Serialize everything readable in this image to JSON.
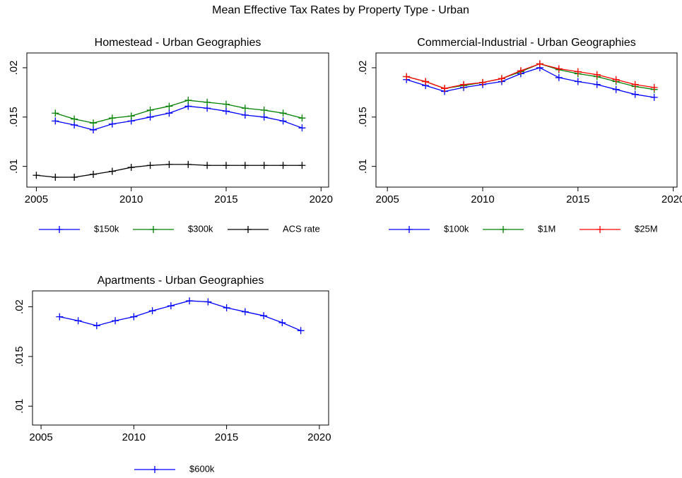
{
  "title": "Mean Effective Tax Rates by Property Type - Urban",
  "chart_data": [
    {
      "type": "line",
      "title": "Homestead - Urban Geographies",
      "xlim": [
        2004.5,
        2020.4
      ],
      "xticks": [
        2005,
        2010,
        2015,
        2020
      ],
      "ylim": [
        0.0079,
        0.0215
      ],
      "yticks": [
        {
          "value": 0.01,
          "label": ".01"
        },
        {
          "value": 0.015,
          "label": ".015"
        },
        {
          "value": 0.02,
          "label": ".02"
        }
      ],
      "series": [
        {
          "name": "$150k",
          "color": "#0000ff",
          "x": [
            2006,
            2007,
            2008,
            2009,
            2010,
            2011,
            2012,
            2013,
            2014,
            2015,
            2016,
            2017,
            2018,
            2019
          ],
          "values": [
            0.0146,
            0.0142,
            0.0137,
            0.0143,
            0.0146,
            0.015,
            0.0154,
            0.0161,
            0.0159,
            0.0156,
            0.0152,
            0.015,
            0.0146,
            0.0139
          ]
        },
        {
          "name": "$300k",
          "color": "#008000",
          "x": [
            2006,
            2007,
            2008,
            2009,
            2010,
            2011,
            2012,
            2013,
            2014,
            2015,
            2016,
            2017,
            2018,
            2019
          ],
          "values": [
            0.0154,
            0.0148,
            0.0144,
            0.0149,
            0.0151,
            0.0157,
            0.0161,
            0.0167,
            0.0165,
            0.0163,
            0.0159,
            0.0157,
            0.0154,
            0.0149
          ]
        },
        {
          "name": "ACS rate",
          "color": "#000000",
          "x": [
            2005,
            2006,
            2007,
            2008,
            2009,
            2010,
            2011,
            2012,
            2013,
            2014,
            2015,
            2016,
            2017,
            2018,
            2019
          ],
          "values": [
            0.0091,
            0.0089,
            0.0089,
            0.0092,
            0.0095,
            0.0099,
            0.0101,
            0.0102,
            0.0102,
            0.0101,
            0.0101,
            0.0101,
            0.0101,
            0.0101,
            0.0101
          ]
        }
      ]
    },
    {
      "type": "line",
      "title": "Commercial-Industrial - Urban Geographies",
      "xlim": [
        2004.4,
        2020.2
      ],
      "xticks": [
        2005,
        2010,
        2015,
        2020
      ],
      "ylim": [
        0.0079,
        0.0215
      ],
      "yticks": [
        {
          "value": 0.01,
          "label": ".01"
        },
        {
          "value": 0.015,
          "label": ".015"
        },
        {
          "value": 0.02,
          "label": ".02"
        }
      ],
      "series": [
        {
          "name": "$100k",
          "color": "#0000ff",
          "x": [
            2006,
            2007,
            2008,
            2009,
            2010,
            2011,
            2012,
            2013,
            2014,
            2015,
            2016,
            2017,
            2018,
            2019
          ],
          "values": [
            0.0188,
            0.0182,
            0.0176,
            0.018,
            0.0183,
            0.0186,
            0.0194,
            0.02,
            0.019,
            0.0186,
            0.0183,
            0.0178,
            0.0173,
            0.017
          ]
        },
        {
          "name": "$1M",
          "color": "#008000",
          "x": [
            2006,
            2007,
            2008,
            2009,
            2010,
            2011,
            2012,
            2013,
            2014,
            2015,
            2016,
            2017,
            2018,
            2019
          ],
          "values": [
            0.0191,
            0.0186,
            0.0179,
            0.0182,
            0.0185,
            0.0189,
            0.0196,
            0.0204,
            0.0198,
            0.0194,
            0.0191,
            0.0186,
            0.0181,
            0.0178
          ]
        },
        {
          "name": "$25M",
          "color": "#ff0000",
          "x": [
            2006,
            2007,
            2008,
            2009,
            2010,
            2011,
            2012,
            2013,
            2014,
            2015,
            2016,
            2017,
            2018,
            2019
          ],
          "values": [
            0.0191,
            0.0186,
            0.0179,
            0.0183,
            0.0185,
            0.0189,
            0.0197,
            0.0204,
            0.0199,
            0.0196,
            0.0193,
            0.0188,
            0.0183,
            0.018
          ]
        }
      ]
    },
    {
      "type": "line",
      "title": "Apartments - Urban Geographies",
      "xlim": [
        2004.54,
        2020.5
      ],
      "xticks": [
        2005,
        2010,
        2015,
        2020
      ],
      "ylim": [
        0.0081,
        0.0216
      ],
      "yticks": [
        {
          "value": 0.01,
          "label": ".01"
        },
        {
          "value": 0.015,
          "label": ".015"
        },
        {
          "value": 0.02,
          "label": ".02"
        }
      ],
      "series": [
        {
          "name": "$600k",
          "color": "#0000ff",
          "x": [
            2006,
            2007,
            2008,
            2009,
            2010,
            2011,
            2012,
            2013,
            2014,
            2015,
            2016,
            2017,
            2018,
            2019
          ],
          "values": [
            0.019,
            0.0186,
            0.0181,
            0.0186,
            0.019,
            0.0196,
            0.0201,
            0.0206,
            0.0205,
            0.0199,
            0.0195,
            0.0191,
            0.0184,
            0.0176
          ]
        }
      ]
    }
  ]
}
